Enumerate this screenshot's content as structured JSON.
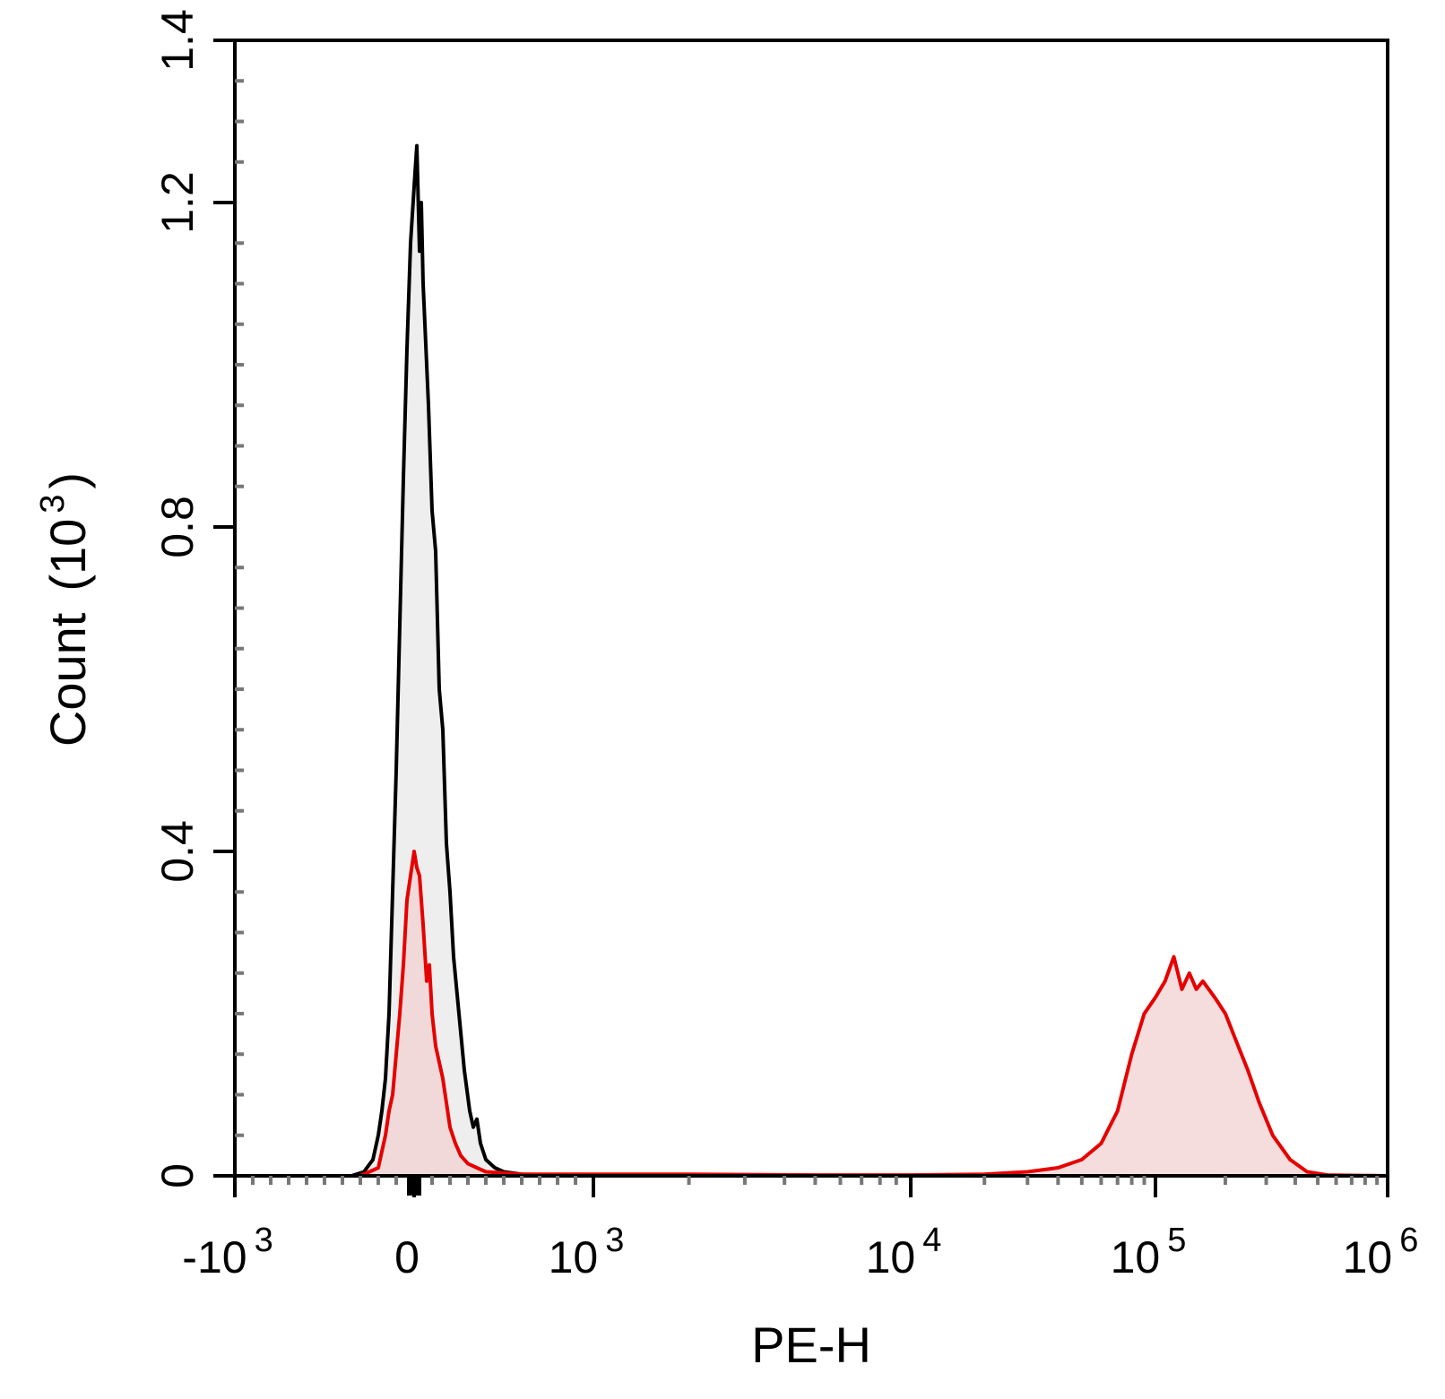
{
  "chart_data": {
    "type": "area",
    "xlabel": "PE-H",
    "ylabel": "Count",
    "ylabel_unit_base": "(10",
    "ylabel_unit_exp": "3",
    "ylabel_unit_close": ")",
    "x_scale": "biexponential",
    "xlim": [
      -1000,
      1000000
    ],
    "ylim": [
      0,
      1.4
    ],
    "x_ticks": [
      {
        "value": -1000,
        "base": "-10",
        "exp": "3"
      },
      {
        "value": 0,
        "base": "0",
        "exp": ""
      },
      {
        "value": 1000,
        "base": "10",
        "exp": "3"
      },
      {
        "value": 10000,
        "base": "10",
        "exp": "4"
      },
      {
        "value": 100000,
        "base": "10",
        "exp": "5"
      },
      {
        "value": 1000000,
        "base": "10",
        "exp": "6"
      }
    ],
    "y_ticks": [
      {
        "value": 0,
        "label": "0"
      },
      {
        "value": 0.4,
        "label": "0.4"
      },
      {
        "value": 0.8,
        "label": "0.8"
      },
      {
        "value": 1.2,
        "label": "1.2"
      },
      {
        "value": 1.4,
        "label": "1.4"
      }
    ],
    "grid": false,
    "series": [
      {
        "stroke": "#000000",
        "fill": "#e8e8e8",
        "points": [
          [
            -350,
            0
          ],
          [
            -280,
            0.005
          ],
          [
            -230,
            0.02
          ],
          [
            -200,
            0.05
          ],
          [
            -180,
            0.08
          ],
          [
            -160,
            0.12
          ],
          [
            -140,
            0.2
          ],
          [
            -120,
            0.35
          ],
          [
            -100,
            0.5
          ],
          [
            -80,
            0.68
          ],
          [
            -60,
            0.86
          ],
          [
            -40,
            1.02
          ],
          [
            -20,
            1.15
          ],
          [
            0,
            1.22
          ],
          [
            15,
            1.27
          ],
          [
            30,
            1.14
          ],
          [
            40,
            1.2
          ],
          [
            50,
            1.1
          ],
          [
            60,
            1.05
          ],
          [
            80,
            0.95
          ],
          [
            100,
            0.82
          ],
          [
            120,
            0.77
          ],
          [
            140,
            0.6
          ],
          [
            160,
            0.55
          ],
          [
            180,
            0.41
          ],
          [
            200,
            0.35
          ],
          [
            220,
            0.27
          ],
          [
            250,
            0.2
          ],
          [
            280,
            0.13
          ],
          [
            310,
            0.08
          ],
          [
            330,
            0.06
          ],
          [
            350,
            0.07
          ],
          [
            370,
            0.04
          ],
          [
            400,
            0.02
          ],
          [
            450,
            0.01
          ],
          [
            500,
            0.005
          ],
          [
            600,
            0.002
          ],
          [
            800,
            0.001
          ],
          [
            1000,
            0.001
          ],
          [
            2000,
            0.0
          ],
          [
            5000,
            0.0
          ],
          [
            10000,
            0.0
          ],
          [
            50000,
            0.0
          ],
          [
            100000,
            0.0
          ],
          [
            1000000,
            0.0
          ]
        ]
      },
      {
        "stroke": "#e60000",
        "fill": "#f2d2d2",
        "points": [
          [
            -300,
            0
          ],
          [
            -250,
            0.005
          ],
          [
            -200,
            0.01
          ],
          [
            -180,
            0.03
          ],
          [
            -160,
            0.05
          ],
          [
            -140,
            0.08
          ],
          [
            -120,
            0.1
          ],
          [
            -100,
            0.15
          ],
          [
            -80,
            0.2
          ],
          [
            -60,
            0.26
          ],
          [
            -40,
            0.34
          ],
          [
            -20,
            0.37
          ],
          [
            0,
            0.4
          ],
          [
            15,
            0.38
          ],
          [
            30,
            0.37
          ],
          [
            50,
            0.31
          ],
          [
            70,
            0.24
          ],
          [
            85,
            0.26
          ],
          [
            100,
            0.2
          ],
          [
            120,
            0.16
          ],
          [
            140,
            0.14
          ],
          [
            160,
            0.12
          ],
          [
            180,
            0.09
          ],
          [
            200,
            0.06
          ],
          [
            230,
            0.04
          ],
          [
            260,
            0.025
          ],
          [
            300,
            0.015
          ],
          [
            350,
            0.01
          ],
          [
            400,
            0.005
          ],
          [
            600,
            0.002
          ],
          [
            1000,
            0.002
          ],
          [
            2000,
            0.002
          ],
          [
            5000,
            0.001
          ],
          [
            10000,
            0.001
          ],
          [
            20000,
            0.002
          ],
          [
            30000,
            0.005
          ],
          [
            40000,
            0.01
          ],
          [
            50000,
            0.02
          ],
          [
            60000,
            0.04
          ],
          [
            70000,
            0.08
          ],
          [
            80000,
            0.15
          ],
          [
            90000,
            0.2
          ],
          [
            100000,
            0.22
          ],
          [
            110000,
            0.24
          ],
          [
            120000,
            0.27
          ],
          [
            130000,
            0.23
          ],
          [
            140000,
            0.25
          ],
          [
            150000,
            0.23
          ],
          [
            160000,
            0.24
          ],
          [
            180000,
            0.22
          ],
          [
            200000,
            0.2
          ],
          [
            220000,
            0.17
          ],
          [
            250000,
            0.13
          ],
          [
            280000,
            0.09
          ],
          [
            320000,
            0.05
          ],
          [
            380000,
            0.02
          ],
          [
            450000,
            0.005
          ],
          [
            550000,
            0.001
          ],
          [
            1000000,
            0.0
          ]
        ]
      }
    ]
  }
}
